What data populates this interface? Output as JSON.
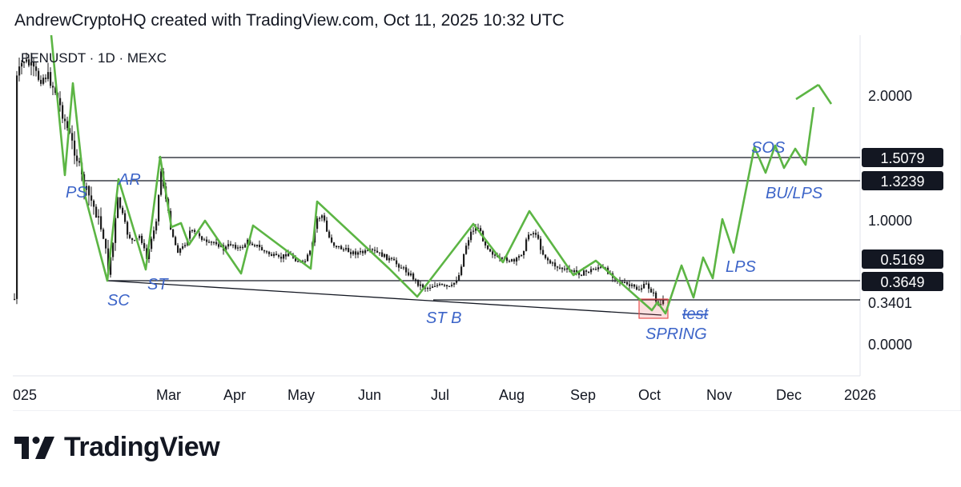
{
  "header": {
    "text": "AndrewCryptoHQ created with TradingView.com, Oct 11, 2025 10:32 UTC"
  },
  "brand": {
    "name": "TradingView",
    "logo_icon": "tradingview-logo-icon"
  },
  "colors": {
    "candles": "#1e1e1e",
    "wyckoff_path": "#5cb544",
    "label_blue": "#3c64c8",
    "lines": "#131722",
    "spring_box": "#e8504f"
  },
  "chart_data": {
    "type": "candlestick",
    "symbol": "PENUSDT · 1D · MEXC",
    "x_ticks": [
      "025",
      "Mar",
      "Apr",
      "May",
      "Jun",
      "Jul",
      "Aug",
      "Sep",
      "Oct",
      "Nov",
      "Dec",
      "2026"
    ],
    "y_ticks": [
      "2.0000",
      "1.0000",
      "0.3401",
      "0.0000"
    ],
    "price_badges": [
      "1.5079",
      "1.3239",
      "0.5169",
      "0.3649"
    ],
    "horizontal_levels": [
      1.5079,
      1.3239,
      0.3649,
      0.3401
    ],
    "wyckoff_labels": [
      "PS",
      "AR",
      "ST",
      "SC",
      "ST B",
      "test",
      "SPRING",
      "SOS",
      "BU/LPS",
      "LPS"
    ],
    "grid": false
  }
}
